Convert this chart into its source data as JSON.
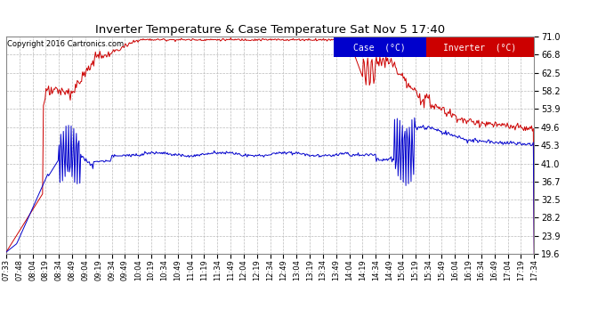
{
  "title": "Inverter Temperature & Case Temperature Sat Nov 5 17:40",
  "copyright": "Copyright 2016 Cartronics.com",
  "background_color": "#ffffff",
  "plot_bg_color": "#ffffff",
  "grid_color": "#bbbbbb",
  "ylim": [
    19.6,
    71.0
  ],
  "yticks": [
    19.6,
    23.9,
    28.2,
    32.5,
    36.7,
    41.0,
    45.3,
    49.6,
    53.9,
    58.2,
    62.5,
    66.8,
    71.0
  ],
  "xtick_labels": [
    "07:33",
    "07:48",
    "08:04",
    "08:19",
    "08:34",
    "08:49",
    "09:04",
    "09:19",
    "09:34",
    "09:49",
    "10:04",
    "10:19",
    "10:34",
    "10:49",
    "11:04",
    "11:19",
    "11:34",
    "11:49",
    "12:04",
    "12:19",
    "12:34",
    "12:49",
    "13:04",
    "13:19",
    "13:34",
    "13:49",
    "14:04",
    "14:19",
    "14:34",
    "14:49",
    "15:04",
    "15:19",
    "15:34",
    "15:49",
    "16:04",
    "16:19",
    "16:34",
    "16:49",
    "17:04",
    "17:19",
    "17:34"
  ],
  "inverter_color": "#cc0000",
  "case_color": "#0000cc",
  "legend_case_bg": "#0000cc",
  "legend_inv_bg": "#cc0000",
  "legend_text_color": "#ffffff",
  "figsize": [
    6.9,
    3.75
  ],
  "dpi": 100
}
